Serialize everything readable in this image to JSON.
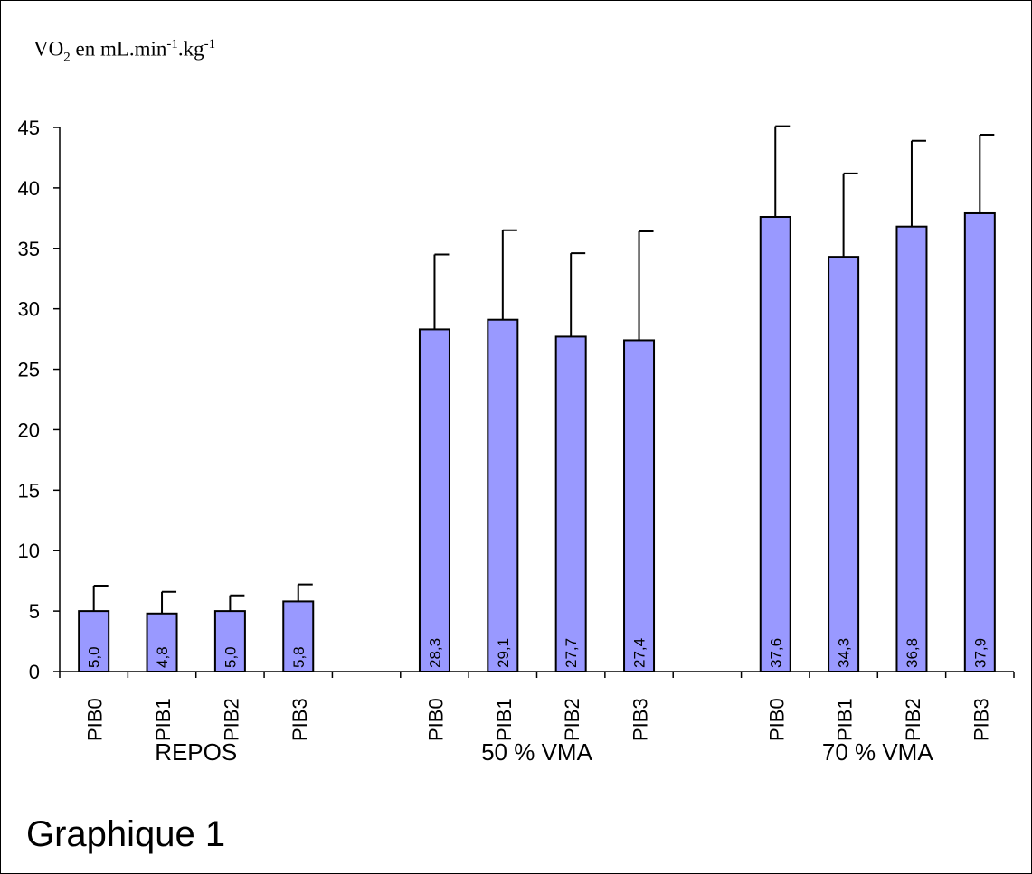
{
  "chart_data": {
    "type": "bar",
    "title": "",
    "ylabel": {
      "pre": "VO",
      "sub": "2",
      "mid": " en mL.min",
      "sup1": "-1",
      "mid2": ".kg",
      "sup2": "-1"
    },
    "caption": "Graphique 1",
    "ylim": [
      0,
      45
    ],
    "yticks": [
      0,
      5,
      10,
      15,
      20,
      25,
      30,
      35,
      40,
      45
    ],
    "bar_color": "#9999ff",
    "groups": [
      {
        "name": "REPOS",
        "categories": [
          "PIB0",
          "PIB1",
          "PIB2",
          "PIB3"
        ],
        "values": [
          5.0,
          4.8,
          5.0,
          5.8
        ],
        "labels": [
          "5,0",
          "4,8",
          "5,0",
          "5,8"
        ],
        "error_upper": [
          7.1,
          6.6,
          6.3,
          7.2
        ]
      },
      {
        "name": "50 % VMA",
        "categories": [
          "PIB0",
          "PIB1",
          "PIB2",
          "PIB3"
        ],
        "values": [
          28.3,
          29.1,
          27.7,
          27.4
        ],
        "labels": [
          "28,3",
          "29,1",
          "27,7",
          "27,4"
        ],
        "error_upper": [
          34.5,
          36.5,
          34.6,
          36.4
        ]
      },
      {
        "name": "70 % VMA",
        "categories": [
          "PIB0",
          "PIB1",
          "PIB2",
          "PIB3"
        ],
        "values": [
          37.6,
          34.3,
          36.8,
          37.9
        ],
        "labels": [
          "37,6",
          "34,3",
          "36,8",
          "37,9"
        ],
        "error_upper": [
          45.1,
          41.2,
          43.9,
          44.4
        ]
      }
    ]
  }
}
